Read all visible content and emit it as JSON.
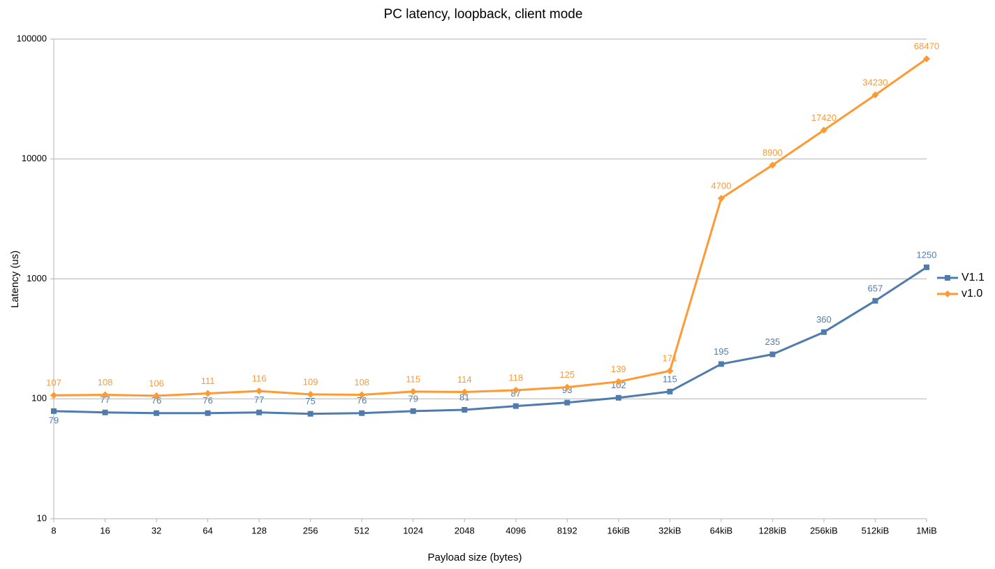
{
  "chart_data": {
    "type": "line",
    "title": "PC latency, loopback, client mode",
    "x_label": "Payload size (bytes)",
    "y_label": "Latency (us)",
    "categories": [
      "8",
      "16",
      "32",
      "64",
      "128",
      "256",
      "512",
      "1024",
      "2048",
      "4096",
      "8192",
      "16kiB",
      "32kiB",
      "64kiB",
      "128kiB",
      "256kiB",
      "512kiB",
      "1MiB"
    ],
    "series": [
      {
        "name": "V1.1",
        "color": "#4f7cac",
        "marker": "square",
        "values": [
          79,
          77,
          76,
          76,
          77,
          75,
          76,
          79,
          81,
          87,
          93,
          102,
          115,
          195,
          235,
          360,
          657,
          1250
        ]
      },
      {
        "name": "v1.0",
        "color": "#ff9933",
        "marker": "diamond",
        "values": [
          107,
          108,
          106,
          111,
          116,
          109,
          108,
          115,
          114,
          118,
          125,
          139,
          171,
          4700,
          8900,
          17420,
          34230,
          68470
        ]
      }
    ],
    "ylim": [
      10,
      100000
    ],
    "yticks": [
      10,
      100,
      1000,
      10000,
      100000
    ],
    "log_y": true,
    "grid": true,
    "legend": "right",
    "data_labels": true
  }
}
